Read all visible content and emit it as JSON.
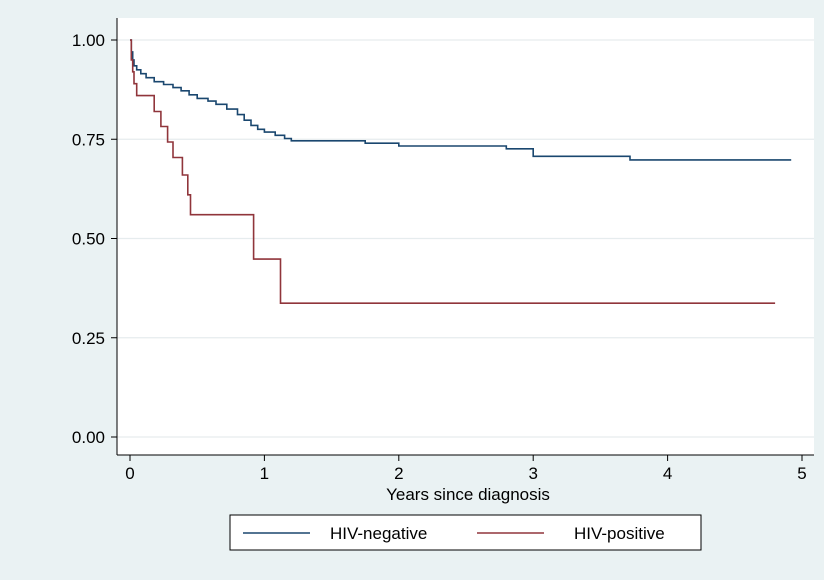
{
  "chart_data": {
    "type": "line",
    "step": true,
    "title": "",
    "xlabel": "Years since diagnosis",
    "ylabel": "",
    "xlim": [
      0,
      5
    ],
    "ylim": [
      0,
      1
    ],
    "xticks": [
      0,
      1,
      2,
      3,
      4,
      5
    ],
    "yticks": [
      0,
      0.25,
      0.5,
      0.75,
      1.0
    ],
    "x_tick_labels": [
      "0",
      "1",
      "2",
      "3",
      "4",
      "5"
    ],
    "y_tick_labels": [
      "0.00",
      "0.25",
      "0.50",
      "0.75",
      "1.00"
    ],
    "grid": "horizontal",
    "legend_position": "bottom",
    "series": [
      {
        "name": "HIV-negative",
        "color": "#1a476f",
        "points": [
          [
            0,
            1.0
          ],
          [
            0.01,
            0.97
          ],
          [
            0.02,
            0.95
          ],
          [
            0.03,
            0.935
          ],
          [
            0.05,
            0.925
          ],
          [
            0.08,
            0.915
          ],
          [
            0.12,
            0.905
          ],
          [
            0.18,
            0.895
          ],
          [
            0.25,
            0.888
          ],
          [
            0.32,
            0.88
          ],
          [
            0.38,
            0.872
          ],
          [
            0.44,
            0.862
          ],
          [
            0.5,
            0.853
          ],
          [
            0.58,
            0.846
          ],
          [
            0.64,
            0.838
          ],
          [
            0.72,
            0.826
          ],
          [
            0.8,
            0.812
          ],
          [
            0.85,
            0.798
          ],
          [
            0.9,
            0.785
          ],
          [
            0.95,
            0.775
          ],
          [
            1.0,
            0.768
          ],
          [
            1.08,
            0.76
          ],
          [
            1.15,
            0.752
          ],
          [
            1.2,
            0.746
          ],
          [
            1.75,
            0.74
          ],
          [
            2.0,
            0.733
          ],
          [
            2.8,
            0.726
          ],
          [
            3.0,
            0.707
          ],
          [
            3.72,
            0.698
          ],
          [
            4.92,
            0.698
          ]
        ]
      },
      {
        "name": "HIV-positive",
        "color": "#90353b",
        "points": [
          [
            0,
            1.0
          ],
          [
            0.01,
            0.95
          ],
          [
            0.02,
            0.92
          ],
          [
            0.03,
            0.89
          ],
          [
            0.05,
            0.86
          ],
          [
            0.18,
            0.82
          ],
          [
            0.23,
            0.782
          ],
          [
            0.28,
            0.743
          ],
          [
            0.32,
            0.704
          ],
          [
            0.39,
            0.66
          ],
          [
            0.43,
            0.61
          ],
          [
            0.45,
            0.56
          ],
          [
            0.92,
            0.448
          ],
          [
            1.12,
            0.337
          ],
          [
            4.8,
            0.337
          ]
        ]
      }
    ]
  }
}
